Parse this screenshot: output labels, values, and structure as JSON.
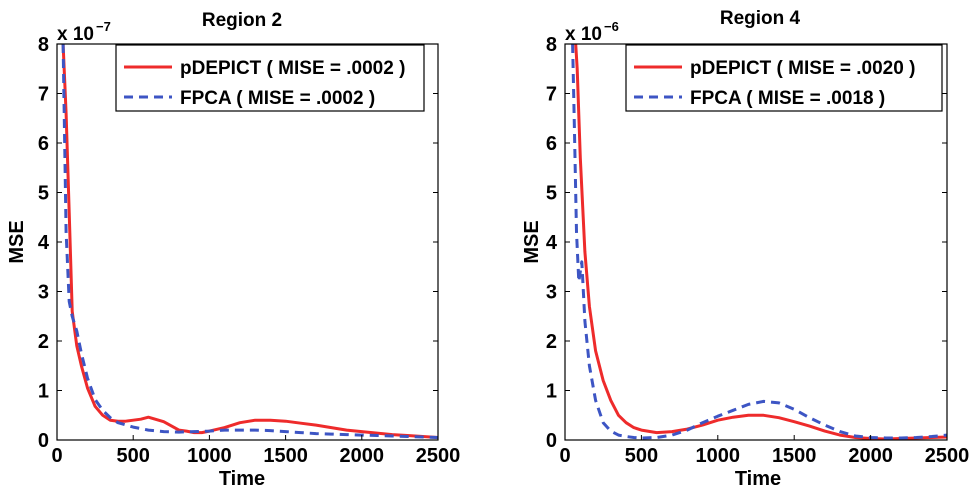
{
  "chart_data": [
    {
      "type": "line",
      "title": "Region 2",
      "xlabel": "Time",
      "ylabel": "MSE",
      "xlim": [
        0,
        2500
      ],
      "ylim": [
        0,
        8
      ],
      "x_ticks": [
        "0",
        "500",
        "1000",
        "1500",
        "2000",
        "2500"
      ],
      "y_ticks": [
        "0",
        "1",
        "2",
        "3",
        "4",
        "5",
        "6",
        "7",
        "8"
      ],
      "y_exponent_base": "x 10",
      "y_exponent_power": "−7",
      "legend_position": "top-right",
      "series": [
        {
          "name": "pDEPICT ( MISE = .0002 )",
          "color": "#ee2b2b",
          "style": "solid",
          "x": [
            40,
            60,
            80,
            100,
            130,
            160,
            200,
            250,
            300,
            350,
            400,
            450,
            500,
            550,
            600,
            700,
            800,
            850,
            900,
            950,
            1000,
            1100,
            1200,
            1300,
            1400,
            1500,
            1600,
            1700,
            1800,
            1900,
            2000,
            2100,
            2200,
            2300,
            2400,
            2500
          ],
          "y": [
            8,
            6.6,
            4.6,
            2.6,
            1.9,
            1.5,
            1.05,
            0.68,
            0.5,
            0.4,
            0.38,
            0.38,
            0.4,
            0.42,
            0.46,
            0.37,
            0.2,
            0.18,
            0.15,
            0.15,
            0.18,
            0.25,
            0.35,
            0.4,
            0.4,
            0.38,
            0.34,
            0.3,
            0.25,
            0.2,
            0.17,
            0.14,
            0.11,
            0.09,
            0.07,
            0.05
          ]
        },
        {
          "name": "FPCA ( MISE = .0002 )",
          "color": "#3d55c4",
          "style": "dashed",
          "x": [
            40,
            60,
            80,
            100,
            130,
            160,
            200,
            250,
            300,
            350,
            400,
            500,
            600,
            700,
            800,
            900,
            1000,
            1100,
            1200,
            1300,
            1400,
            1500,
            1600,
            1700,
            1800,
            1900,
            2000,
            2100,
            2200,
            2300,
            2400,
            2500
          ],
          "y": [
            8,
            4.2,
            2.8,
            2.5,
            2.2,
            1.75,
            1.25,
            0.82,
            0.6,
            0.45,
            0.35,
            0.26,
            0.2,
            0.17,
            0.16,
            0.17,
            0.18,
            0.2,
            0.2,
            0.2,
            0.19,
            0.17,
            0.15,
            0.13,
            0.12,
            0.11,
            0.1,
            0.09,
            0.08,
            0.07,
            0.06,
            0.05
          ]
        }
      ]
    },
    {
      "type": "line",
      "title": "Region 4",
      "xlabel": "Time",
      "ylabel": "MSE",
      "xlim": [
        0,
        2500
      ],
      "ylim": [
        0,
        8
      ],
      "x_ticks": [
        "0",
        "500",
        "1000",
        "1500",
        "2000",
        "2500"
      ],
      "y_ticks": [
        "0",
        "1",
        "2",
        "3",
        "4",
        "5",
        "6",
        "7",
        "8"
      ],
      "y_exponent_base": "x 10",
      "y_exponent_power": "−6",
      "legend_position": "top-right",
      "series": [
        {
          "name": "pDEPICT ( MISE = .0020 )",
          "color": "#ee2b2b",
          "style": "solid",
          "x": [
            70,
            80,
            100,
            130,
            160,
            200,
            250,
            300,
            350,
            400,
            450,
            500,
            600,
            700,
            800,
            900,
            1000,
            1100,
            1200,
            1300,
            1400,
            1500,
            1600,
            1700,
            1800,
            1900,
            2000,
            2100,
            2200,
            2300,
            2400,
            2500
          ],
          "y": [
            8,
            7.5,
            5.7,
            3.8,
            2.7,
            1.8,
            1.2,
            0.8,
            0.5,
            0.35,
            0.25,
            0.2,
            0.15,
            0.17,
            0.22,
            0.3,
            0.4,
            0.46,
            0.5,
            0.5,
            0.45,
            0.37,
            0.28,
            0.18,
            0.1,
            0.05,
            0.03,
            0.02,
            0.03,
            0.04,
            0.05,
            0.06
          ]
        },
        {
          "name": "FPCA ( MISE = .0018 )",
          "color": "#3d55c4",
          "style": "dashed",
          "x": [
            50,
            60,
            75,
            90,
            110,
            130,
            160,
            200,
            250,
            300,
            350,
            400,
            450,
            500,
            600,
            700,
            800,
            900,
            1000,
            1100,
            1200,
            1300,
            1400,
            1500,
            1600,
            1700,
            1800,
            1900,
            2000,
            2100,
            2200,
            2300,
            2400,
            2500
          ],
          "y": [
            8,
            6.5,
            4.2,
            3.2,
            3.6,
            2.4,
            1.5,
            0.8,
            0.35,
            0.18,
            0.1,
            0.07,
            0.05,
            0.04,
            0.05,
            0.1,
            0.2,
            0.35,
            0.48,
            0.6,
            0.72,
            0.78,
            0.75,
            0.62,
            0.45,
            0.3,
            0.17,
            0.08,
            0.05,
            0.04,
            0.04,
            0.05,
            0.07,
            0.1
          ]
        }
      ]
    }
  ]
}
